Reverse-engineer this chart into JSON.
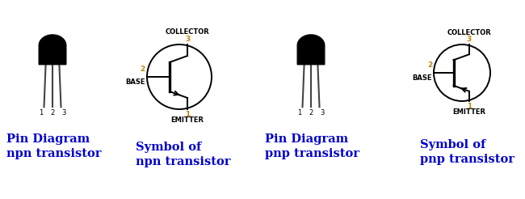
{
  "bg_color": "#ffffff",
  "label_color_orange": "#b8860b",
  "label_color_black": "#000000",
  "title_color": "#0000cc",
  "figsize": [
    6.5,
    2.46
  ],
  "dpi": 100,
  "npn_pin_text": "Pin Diagram\nnpn transistor",
  "pnp_pin_text": "Pin Diagram\npnp transistor",
  "npn_sym_text": "Symbol of\nnpn transistor",
  "pnp_sym_text": "Symbol of\npnp transistor",
  "collector_label": "COLLECTOR",
  "base_label": "BASE",
  "emitter_label": "EMITTER",
  "pin1": "1",
  "pin2": "2",
  "pin3": "3"
}
